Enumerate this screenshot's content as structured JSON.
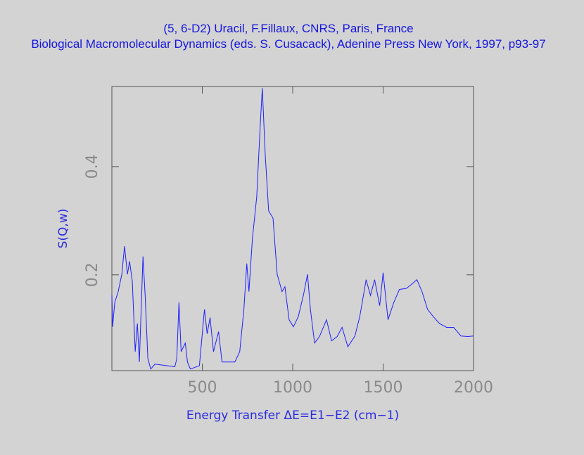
{
  "chart_data": {
    "type": "line",
    "title": "(5, 6-D2) Uracil, F.Fillaux, CNRS, Paris, France",
    "subtitle": "Biological Macromolecular Dynamics (eds. S. Cusacack), Adenine Press New York, 1997, p93-97",
    "x_label": "Energy Transfer ΔE=E1−E2 (cm−1)",
    "y_label": "S(Q,w)",
    "xlim": [
      0,
      2000
    ],
    "ylim": [
      0.023,
      0.548
    ],
    "xticks": [
      500,
      1000,
      1500,
      2000
    ],
    "yticks": [
      0.2,
      0.4
    ],
    "series": [
      {
        "color": "#2020ff",
        "x": [
          0,
          4,
          16,
          35,
          55,
          70,
          86,
          98,
          113,
          129,
          141,
          152,
          172,
          184,
          199,
          215,
          238,
          309,
          348,
          359,
          371,
          383,
          406,
          418,
          434,
          484,
          512,
          527,
          543,
          562,
          590,
          609,
          680,
          707,
          730,
          746,
          758,
          777,
          801,
          820,
          832,
          848,
          867,
          891,
          914,
          941,
          957,
          980,
          1004,
          1031,
          1059,
          1082,
          1098,
          1121,
          1148,
          1187,
          1215,
          1246,
          1273,
          1305,
          1344,
          1371,
          1406,
          1430,
          1453,
          1481,
          1500,
          1527,
          1559,
          1590,
          1629,
          1656,
          1687,
          1715,
          1746,
          1777,
          1812,
          1851,
          1890,
          1930,
          1969,
          2000
        ],
        "values": [
          0.162,
          0.104,
          0.149,
          0.169,
          0.201,
          0.253,
          0.201,
          0.225,
          0.188,
          0.058,
          0.11,
          0.039,
          0.234,
          0.162,
          0.045,
          0.026,
          0.035,
          0.032,
          0.03,
          0.045,
          0.149,
          0.058,
          0.074,
          0.039,
          0.026,
          0.032,
          0.136,
          0.091,
          0.121,
          0.058,
          0.095,
          0.039,
          0.039,
          0.058,
          0.136,
          0.221,
          0.169,
          0.266,
          0.344,
          0.474,
          0.545,
          0.422,
          0.318,
          0.305,
          0.201,
          0.169,
          0.178,
          0.117,
          0.104,
          0.123,
          0.162,
          0.201,
          0.136,
          0.074,
          0.086,
          0.117,
          0.078,
          0.086,
          0.103,
          0.067,
          0.087,
          0.123,
          0.191,
          0.162,
          0.191,
          0.143,
          0.204,
          0.117,
          0.149,
          0.173,
          0.175,
          0.182,
          0.191,
          0.169,
          0.136,
          0.123,
          0.11,
          0.103,
          0.103,
          0.087,
          0.086,
          0.087
        ]
      }
    ]
  }
}
